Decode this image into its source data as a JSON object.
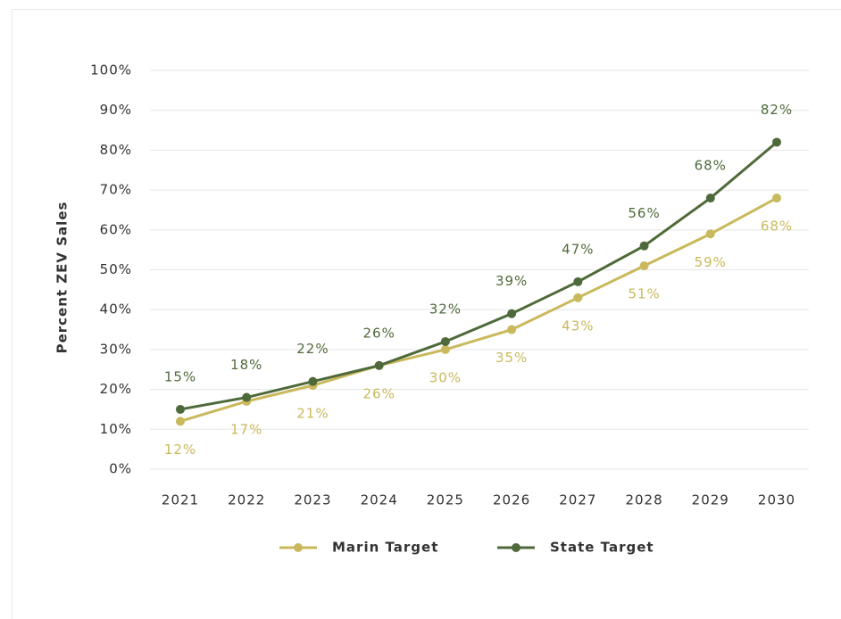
{
  "chart_data": {
    "type": "line",
    "y_label": "Percent ZEV Sales",
    "categories": [
      "2021",
      "2022",
      "2023",
      "2024",
      "2025",
      "2026",
      "2027",
      "2028",
      "2029",
      "2030"
    ],
    "series": [
      {
        "name": "Marin Target",
        "color": "#c9b95c",
        "values": [
          12,
          17,
          21,
          26,
          30,
          35,
          43,
          51,
          59,
          68
        ],
        "value_labels": [
          "12%",
          "17%",
          "21%",
          "26%",
          "30%",
          "35%",
          "43%",
          "51%",
          "59%",
          "68%"
        ]
      },
      {
        "name": "State Target",
        "color": "#4f6a3a",
        "values": [
          15,
          18,
          22,
          26,
          32,
          39,
          47,
          56,
          68,
          82
        ],
        "value_labels": [
          "15%",
          "18%",
          "22%",
          "26%",
          "32%",
          "39%",
          "47%",
          "56%",
          "68%",
          "82%"
        ]
      }
    ],
    "ylim": [
      0,
      100
    ],
    "yticks": [
      {
        "value": 0,
        "label": "0%"
      },
      {
        "value": 10,
        "label": "10%"
      },
      {
        "value": 20,
        "label": "20%"
      },
      {
        "value": 30,
        "label": "30%"
      },
      {
        "value": 40,
        "label": "40%"
      },
      {
        "value": 50,
        "label": "50%"
      },
      {
        "value": 60,
        "label": "60%"
      },
      {
        "value": 70,
        "label": "70%"
      },
      {
        "value": 80,
        "label": "80%"
      },
      {
        "value": 90,
        "label": "90%"
      },
      {
        "value": 100,
        "label": "100%"
      }
    ],
    "grid": true,
    "legend": "bottom"
  }
}
